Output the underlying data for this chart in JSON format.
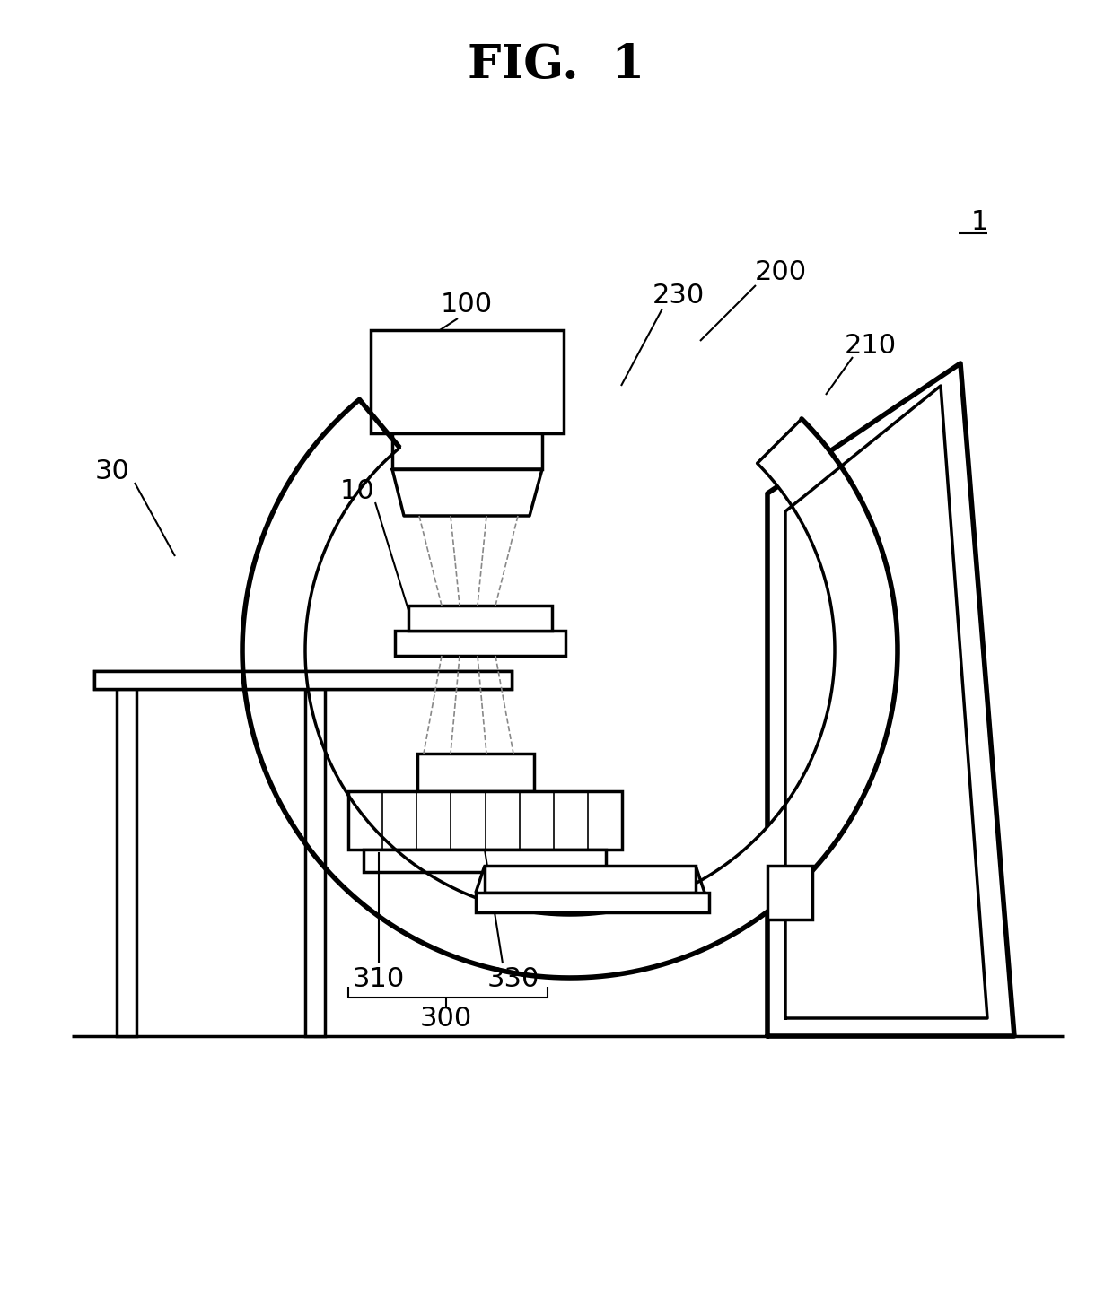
{
  "title": "FIG.  1",
  "bg_color": "#ffffff",
  "line_color": "#000000",
  "title_fontsize": 38,
  "label_fontsize": 22,
  "lw_thin": 1.5,
  "lw_med": 2.5,
  "lw_thick": 4.0
}
